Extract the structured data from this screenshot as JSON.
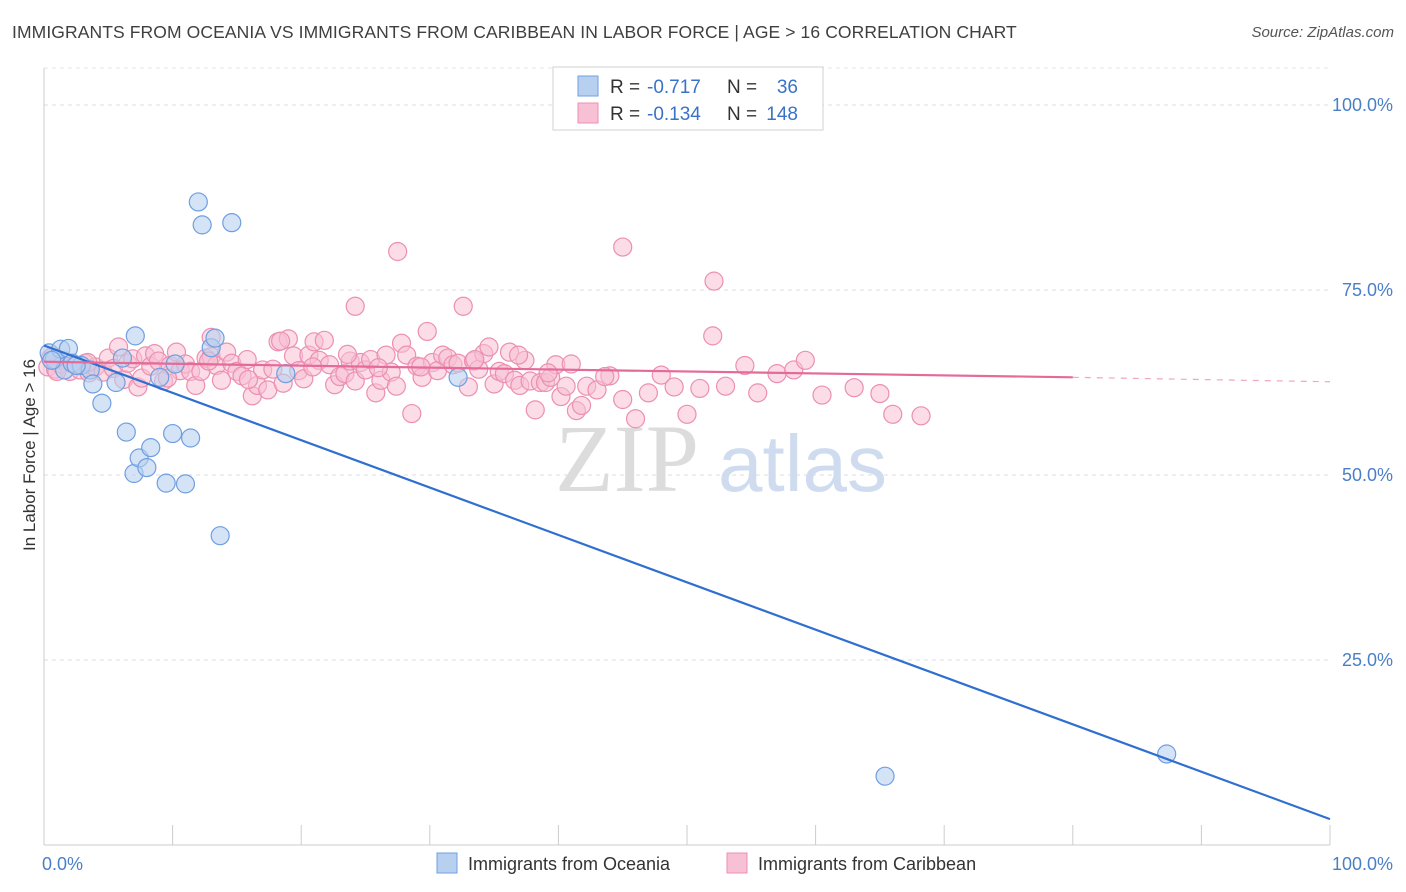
{
  "title": "IMMIGRANTS FROM OCEANIA VS IMMIGRANTS FROM CARIBBEAN IN LABOR FORCE | AGE > 16 CORRELATION CHART",
  "source": "Source: ZipAtlas.com",
  "watermark": {
    "zip": "ZIP",
    "atlas": "atlas"
  },
  "legend": {
    "r_label": "R =",
    "n_label": "N =",
    "rows": [
      {
        "r": "-0.717",
        "n": "36"
      },
      {
        "r": "-0.134",
        "n": "148"
      }
    ]
  },
  "colors": {
    "oceania_fill": "#b8d0f0",
    "oceania_stroke": "#6f9fe0",
    "oceania_line": "#2f6fd0",
    "caribbean_fill": "#f8c0d4",
    "caribbean_stroke": "#ec8fb0",
    "caribbean_line": "#e46a98"
  },
  "chart_data": {
    "type": "scatter",
    "title": "IMMIGRANTS FROM OCEANIA VS IMMIGRANTS FROM CARIBBEAN IN LABOR FORCE | AGE > 16 CORRELATION CHART",
    "xlabel": "",
    "ylabel": "In Labor Force | Age > 16",
    "xlim": [
      0,
      100
    ],
    "ylim": [
      0,
      105
    ],
    "x_ticks": [
      "0.0%",
      "100.0%"
    ],
    "y_ticks": [
      {
        "value": 25,
        "label": "25.0%"
      },
      {
        "value": 50,
        "label": "50.0%"
      },
      {
        "value": 75,
        "label": "75.0%"
      },
      {
        "value": 100,
        "label": "100.0%"
      }
    ],
    "grid": true,
    "legend_position": "top-center",
    "series": [
      {
        "name": "Immigrants from Oceania",
        "r": -0.717,
        "n": 36,
        "trend": {
          "x0": 0,
          "y0": 67.5,
          "x1": 100,
          "y1": 3.5
        },
        "points": [
          [
            0.4,
            66.5
          ],
          [
            0.8,
            65.6
          ],
          [
            1.3,
            67.0
          ],
          [
            1.6,
            64.2
          ],
          [
            1.9,
            67.1
          ],
          [
            2.2,
            65.1
          ],
          [
            2.9,
            64.8
          ],
          [
            3.6,
            64.2
          ],
          [
            3.8,
            62.3
          ],
          [
            4.5,
            59.7
          ],
          [
            5.6,
            62.5
          ],
          [
            6.1,
            65.8
          ],
          [
            6.4,
            55.8
          ],
          [
            7.0,
            50.2
          ],
          [
            7.1,
            68.8
          ],
          [
            7.4,
            52.3
          ],
          [
            8.0,
            51.0
          ],
          [
            8.3,
            53.7
          ],
          [
            9.0,
            63.2
          ],
          [
            9.5,
            48.9
          ],
          [
            10.0,
            55.6
          ],
          [
            10.2,
            65.0
          ],
          [
            11.0,
            48.8
          ],
          [
            11.4,
            55.0
          ],
          [
            12.0,
            86.9
          ],
          [
            12.3,
            83.8
          ],
          [
            13.0,
            67.2
          ],
          [
            13.3,
            68.5
          ],
          [
            13.7,
            41.8
          ],
          [
            14.6,
            84.1
          ],
          [
            18.8,
            63.7
          ],
          [
            32.2,
            63.2
          ],
          [
            65.4,
            9.3
          ],
          [
            87.3,
            12.3
          ],
          [
            0.6,
            65.5
          ],
          [
            2.5,
            64.8
          ]
        ]
      },
      {
        "name": "Immigrants from Caribbean",
        "r": -0.134,
        "n": 148,
        "trend": {
          "x0": 0,
          "y0": 65.3,
          "x1": 80,
          "y1": 63.2
        },
        "trend_dashed": {
          "x0": 80,
          "y0": 63.2,
          "x1": 100,
          "y1": 62.6
        },
        "points": [
          [
            0.3,
            64.6
          ],
          [
            0.5,
            65.8
          ],
          [
            0.9,
            64.3
          ],
          [
            1.2,
            65.0
          ],
          [
            1.5,
            65.5
          ],
          [
            2.0,
            64.0
          ],
          [
            2.4,
            64.9
          ],
          [
            2.8,
            64.2
          ],
          [
            3.2,
            65.1
          ],
          [
            3.5,
            63.8
          ],
          [
            4.0,
            64.6
          ],
          [
            4.6,
            63.9
          ],
          [
            5.0,
            65.8
          ],
          [
            5.4,
            64.4
          ],
          [
            5.8,
            67.3
          ],
          [
            6.2,
            62.9
          ],
          [
            6.5,
            65.1
          ],
          [
            6.9,
            65.7
          ],
          [
            7.3,
            61.9
          ],
          [
            7.6,
            63.1
          ],
          [
            7.9,
            66.1
          ],
          [
            8.3,
            64.7
          ],
          [
            8.6,
            66.4
          ],
          [
            8.9,
            65.4
          ],
          [
            9.3,
            62.7
          ],
          [
            9.8,
            64.8
          ],
          [
            10.3,
            66.6
          ],
          [
            10.6,
            64.1
          ],
          [
            11.0,
            65.0
          ],
          [
            11.4,
            64.0
          ],
          [
            11.8,
            62.1
          ],
          [
            12.2,
            64.0
          ],
          [
            12.6,
            65.8
          ],
          [
            13.0,
            66.0
          ],
          [
            13.4,
            64.8
          ],
          [
            13.8,
            62.8
          ],
          [
            14.2,
            66.6
          ],
          [
            14.6,
            65.1
          ],
          [
            15.0,
            64.0
          ],
          [
            15.4,
            63.4
          ],
          [
            15.8,
            65.6
          ],
          [
            16.2,
            60.7
          ],
          [
            16.6,
            62.1
          ],
          [
            17.0,
            64.2
          ],
          [
            17.4,
            61.5
          ],
          [
            17.8,
            64.3
          ],
          [
            18.2,
            68.0
          ],
          [
            18.6,
            62.4
          ],
          [
            19.0,
            68.4
          ],
          [
            19.4,
            66.1
          ],
          [
            19.8,
            64.1
          ],
          [
            20.2,
            63.0
          ],
          [
            20.6,
            66.2
          ],
          [
            21.0,
            68.0
          ],
          [
            21.4,
            65.5
          ],
          [
            21.8,
            68.2
          ],
          [
            22.2,
            64.9
          ],
          [
            22.6,
            62.2
          ],
          [
            23.0,
            63.3
          ],
          [
            23.4,
            63.7
          ],
          [
            23.8,
            65.4
          ],
          [
            24.2,
            62.7
          ],
          [
            24.6,
            65.2
          ],
          [
            25.0,
            64.2
          ],
          [
            25.4,
            65.6
          ],
          [
            25.8,
            61.1
          ],
          [
            26.2,
            62.8
          ],
          [
            26.6,
            66.2
          ],
          [
            27.0,
            63.9
          ],
          [
            27.4,
            62.0
          ],
          [
            27.8,
            67.8
          ],
          [
            28.2,
            66.2
          ],
          [
            28.6,
            58.3
          ],
          [
            29.0,
            64.7
          ],
          [
            29.4,
            63.2
          ],
          [
            29.8,
            69.4
          ],
          [
            30.2,
            65.2
          ],
          [
            30.6,
            64.1
          ],
          [
            31.0,
            66.2
          ],
          [
            31.4,
            65.8
          ],
          [
            31.8,
            64.9
          ],
          [
            32.2,
            65.1
          ],
          [
            32.6,
            72.8
          ],
          [
            33.0,
            61.9
          ],
          [
            33.4,
            65.4
          ],
          [
            33.8,
            64.3
          ],
          [
            34.2,
            66.4
          ],
          [
            34.6,
            67.3
          ],
          [
            35.0,
            62.3
          ],
          [
            35.4,
            64.0
          ],
          [
            35.8,
            63.7
          ],
          [
            36.2,
            66.6
          ],
          [
            36.6,
            62.8
          ],
          [
            37.0,
            62.1
          ],
          [
            37.4,
            65.5
          ],
          [
            37.8,
            62.7
          ],
          [
            38.2,
            58.8
          ],
          [
            38.6,
            62.5
          ],
          [
            39.0,
            62.5
          ],
          [
            39.4,
            63.2
          ],
          [
            39.8,
            64.9
          ],
          [
            40.2,
            60.6
          ],
          [
            40.6,
            62.0
          ],
          [
            41.0,
            65.0
          ],
          [
            41.4,
            58.7
          ],
          [
            41.8,
            59.4
          ],
          [
            42.2,
            62.0
          ],
          [
            43.0,
            61.5
          ],
          [
            44.0,
            63.4
          ],
          [
            45.0,
            60.2
          ],
          [
            46.0,
            57.6
          ],
          [
            47.0,
            61.1
          ],
          [
            48.0,
            63.5
          ],
          [
            49.0,
            61.9
          ],
          [
            50.0,
            58.2
          ],
          [
            51.0,
            61.7
          ],
          [
            52.0,
            68.8
          ],
          [
            53.0,
            62.0
          ],
          [
            54.5,
            64.8
          ],
          [
            55.5,
            61.1
          ],
          [
            57.0,
            63.7
          ],
          [
            58.3,
            64.2
          ],
          [
            59.2,
            65.5
          ],
          [
            60.5,
            60.8
          ],
          [
            63.0,
            61.8
          ],
          [
            65.0,
            61.0
          ],
          [
            66.0,
            58.2
          ],
          [
            68.2,
            58.0
          ],
          [
            27.5,
            80.2
          ],
          [
            45.0,
            80.8
          ],
          [
            52.1,
            76.2
          ],
          [
            24.2,
            72.8
          ],
          [
            13.0,
            68.6
          ],
          [
            3.4,
            65.2
          ],
          [
            1.0,
            64.0
          ],
          [
            0.7,
            66.1
          ],
          [
            9.6,
            63.1
          ],
          [
            12.8,
            65.4
          ],
          [
            15.9,
            62.9
          ],
          [
            18.4,
            68.1
          ],
          [
            20.9,
            64.6
          ],
          [
            23.6,
            66.3
          ],
          [
            26.0,
            64.5
          ],
          [
            29.3,
            64.6
          ],
          [
            33.5,
            65.6
          ],
          [
            36.9,
            66.2
          ],
          [
            39.2,
            63.8
          ],
          [
            43.6,
            63.3
          ]
        ]
      }
    ]
  },
  "bottom_legend": [
    "Immigrants from Oceania",
    "Immigrants from Caribbean"
  ]
}
